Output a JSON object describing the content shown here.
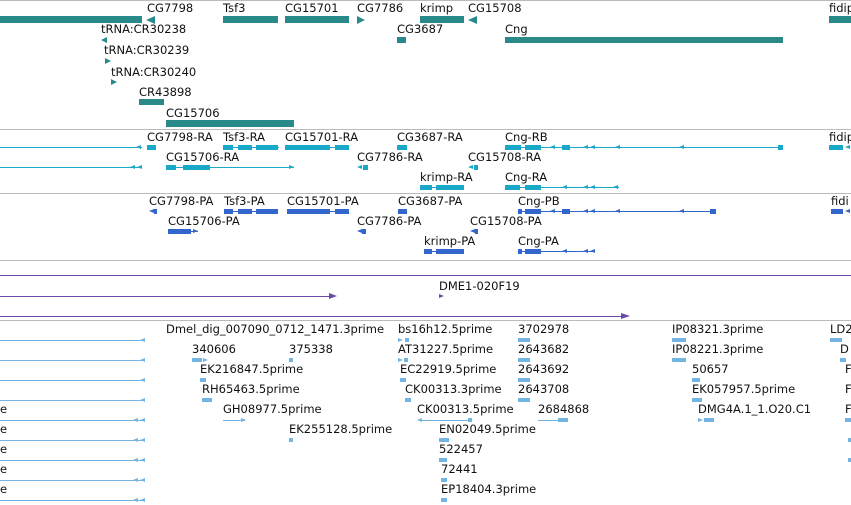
{
  "colors": {
    "gene": "#2a8a8a",
    "transcript": "#1aa8c8",
    "protein": "#3366cc",
    "clone": "#6a4aa8",
    "est": "#74b4e0",
    "separator": "#bbbbbb"
  },
  "tracks": {
    "genes": {
      "labels": [
        "CG7798",
        "Tsf3",
        "CG15701",
        "CG7786",
        "krimp",
        "CG15708",
        "fidip",
        "tRNA:CR30238",
        "CG3687",
        "Cng",
        "tRNA:CR30239",
        "tRNA:CR30240",
        "CR43898",
        "CG15706"
      ]
    },
    "transcripts": {
      "labels": [
        "CG7798-RA",
        "Tsf3-RA",
        "CG15701-RA",
        "CG3687-RA",
        "Cng-RB",
        "fidip",
        "CG15706-RA",
        "CG7786-RA",
        "CG15708-RA",
        "krimp-RA",
        "Cng-RA"
      ]
    },
    "proteins": {
      "labels": [
        "CG7798-PA",
        "Tsf3-PA",
        "CG15701-PA",
        "CG3687-PA",
        "Cng-PB",
        "fidi",
        "CG15706-PA",
        "CG7786-PA",
        "CG15708-PA",
        "krimp-PA",
        "Cng-PA"
      ]
    },
    "clones": {
      "labels": [
        "DME1-020F19"
      ]
    },
    "ests": {
      "labels": [
        "Dmel_dig_007090_0712_1471.3prime",
        "bs16h12.5prime",
        "3702978",
        "IP08321.3prime",
        "LD2",
        "340606",
        "375338",
        "AT31227.5prime",
        "2643682",
        "IP08221.3prime",
        "D",
        "EK216847.5prime",
        "EC22919.5prime",
        "2643692",
        "50657",
        "F",
        "RH65463.5prime",
        "CK00313.3prime",
        "2643708",
        "EK057957.5prime",
        "F",
        "GH08977.5prime",
        "CK00313.5prime",
        "2684868",
        "DMG4A.1_1.O20.C1",
        "F",
        "EK255128.5prime",
        "EN02049.5prime",
        "522457",
        "72441",
        "EP18404.3prime",
        "e",
        "e",
        "e",
        "e",
        "e"
      ]
    }
  }
}
